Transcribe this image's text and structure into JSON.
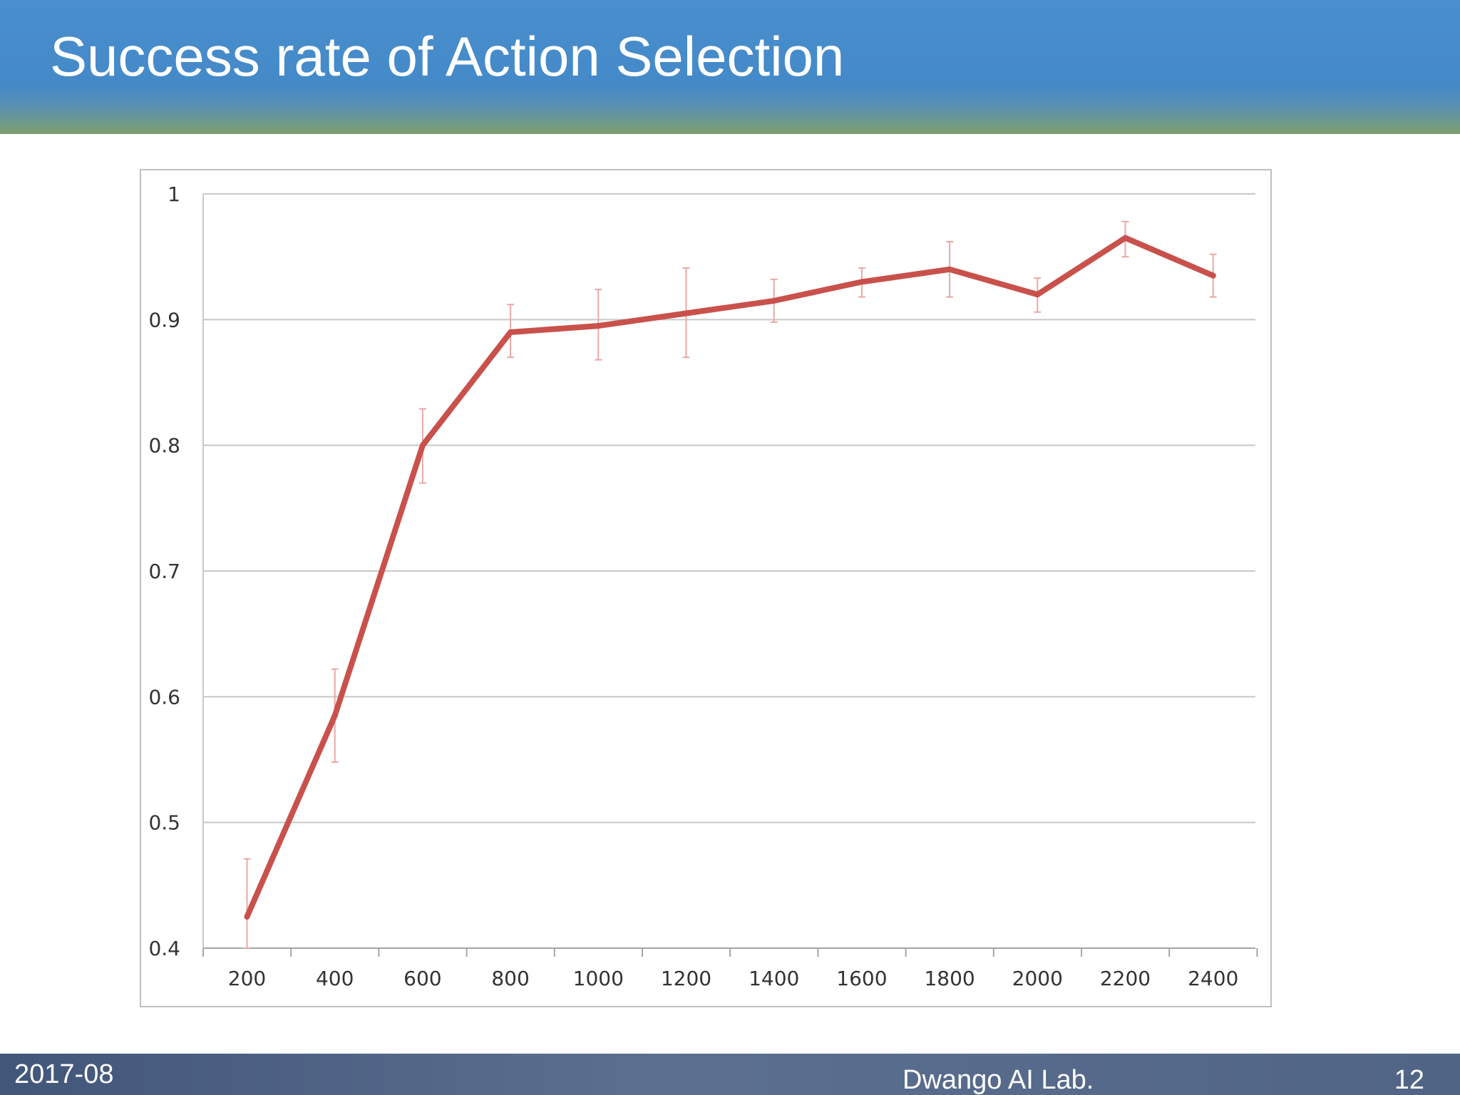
{
  "slide": {
    "title": "Success rate of Action Selection"
  },
  "footer": {
    "date": "2017-08",
    "organization": "Dwango AI Lab.",
    "page_number": "12"
  },
  "colors": {
    "header_blue": "#4489c8",
    "line": "#c9514c",
    "error_bar": "#e7a9a6",
    "gridline": "#c8c8c8",
    "footer": "#506485"
  },
  "chart_data": {
    "type": "line",
    "title": "",
    "xlabel": "",
    "ylabel": "",
    "x": [
      200,
      400,
      600,
      800,
      1000,
      1200,
      1400,
      1600,
      1800,
      2000,
      2200,
      2400
    ],
    "x_tick_labels": [
      "200",
      "400",
      "600",
      "800",
      "1000",
      "1200",
      "1400",
      "1600",
      "1800",
      "2000",
      "2200",
      "2400"
    ],
    "y_tick_labels": [
      "0.4",
      "0.5",
      "0.6",
      "0.7",
      "0.8",
      "0.9",
      "1"
    ],
    "y_ticks": [
      0.4,
      0.5,
      0.6,
      0.7,
      0.8,
      0.9,
      1.0
    ],
    "ylim": [
      0.4,
      1.0
    ],
    "grid": true,
    "legend": "none",
    "series": [
      {
        "values": [
          0.425,
          0.585,
          0.8,
          0.89,
          0.895,
          0.905,
          0.915,
          0.93,
          0.94,
          0.92,
          0.965,
          0.935
        ],
        "error_low": [
          0.4,
          0.548,
          0.77,
          0.87,
          0.868,
          0.87,
          0.898,
          0.918,
          0.918,
          0.906,
          0.95,
          0.918
        ],
        "error_high": [
          0.471,
          0.622,
          0.829,
          0.912,
          0.924,
          0.941,
          0.932,
          0.941,
          0.962,
          0.933,
          0.978,
          0.952
        ]
      }
    ]
  }
}
